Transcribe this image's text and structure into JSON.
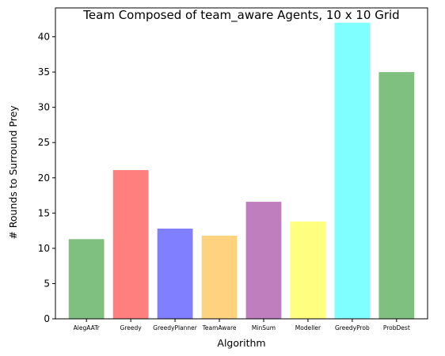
{
  "chart_data": {
    "type": "bar",
    "title": "Team Composed of team_aware Agents, 10 x 10 Grid",
    "xlabel": "Algorithm",
    "ylabel": "# Rounds to Surround Prey",
    "categories": [
      "AlegAATr",
      "Greedy",
      "GreedyPlanner",
      "TeamAware",
      "MinSum",
      "Modeller",
      "GreedyProb",
      "ProbDest"
    ],
    "values": [
      11.3,
      21.1,
      12.8,
      11.8,
      16.6,
      13.8,
      42.0,
      35.0
    ],
    "colors": [
      "#7fbf7f",
      "#ff7f7f",
      "#7f7fff",
      "#ffd27f",
      "#bf7fbf",
      "#ffff7f",
      "#7fffff",
      "#7fbf7f"
    ],
    "ylim": [
      0,
      44.1
    ],
    "yticks": [
      0,
      5,
      10,
      15,
      20,
      25,
      30,
      35,
      40
    ],
    "grid": false,
    "legend": "none"
  }
}
